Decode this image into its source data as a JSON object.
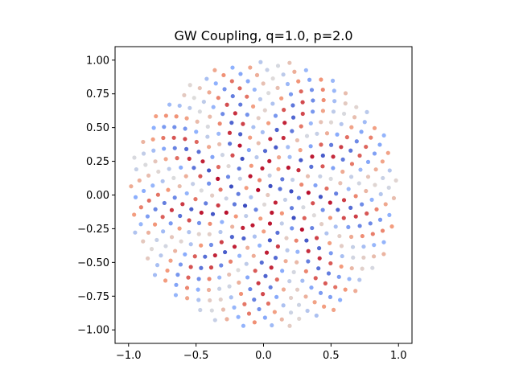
{
  "chart_data": {
    "type": "scatter",
    "title": "GW Coupling, q=1.0, p=2.0",
    "xlabel": "",
    "ylabel": "",
    "xlim": [
      -1.1,
      1.1
    ],
    "ylim": [
      -1.1,
      1.1
    ],
    "xticks": [
      -1.0,
      -0.5,
      0.0,
      0.5,
      1.0
    ],
    "xtick_labels": [
      "−1.0",
      "−0.5",
      "0.0",
      "0.5",
      "1.0"
    ],
    "yticks": [
      -1.0,
      -0.75,
      -0.5,
      -0.25,
      0.0,
      0.25,
      0.5,
      0.75,
      1.0
    ],
    "ytick_labels": [
      "−1.00",
      "−0.75",
      "−0.50",
      "−0.25",
      "0.00",
      "0.25",
      "0.50",
      "0.75",
      "1.00"
    ],
    "grid": false,
    "legend": "none",
    "colormap": "coolwarm",
    "colormap_stops": [
      "#3b4cc0",
      "#8db0fe",
      "#dddcdc",
      "#f49a7b",
      "#b40426"
    ],
    "point_count": 500,
    "layout": "sunflower spiral filling the unit disk (golden-angle spacing)",
    "color_encoding": "periodic in spiral index; stronger colours toward the centre, paler near the rim"
  }
}
